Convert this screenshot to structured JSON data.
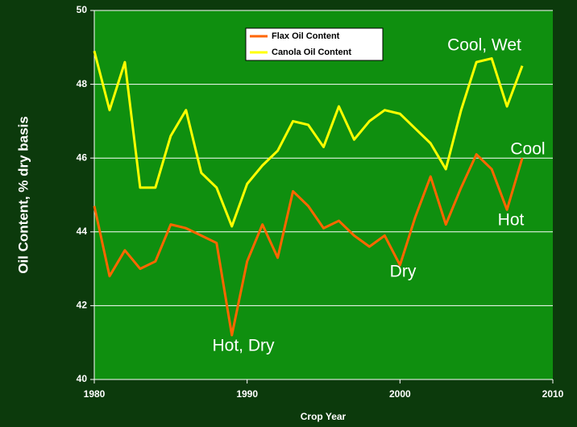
{
  "chart_data": {
    "type": "line",
    "x": [
      1980,
      1981,
      1982,
      1983,
      1984,
      1985,
      1986,
      1987,
      1988,
      1989,
      1990,
      1991,
      1992,
      1993,
      1994,
      1995,
      1996,
      1997,
      1998,
      1999,
      2000,
      2001,
      2002,
      2003,
      2004,
      2005,
      2006,
      2007,
      2008
    ],
    "series": [
      {
        "name": "Flax Oil Content",
        "color": "#ff6600",
        "values": [
          44.7,
          42.8,
          43.5,
          43.0,
          43.2,
          44.2,
          44.1,
          43.9,
          43.7,
          41.2,
          43.2,
          44.2,
          43.3,
          45.1,
          44.7,
          44.1,
          44.3,
          43.9,
          43.6,
          43.9,
          43.1,
          44.4,
          45.5,
          44.2,
          45.2,
          46.1,
          45.7,
          44.6,
          46.0
        ]
      },
      {
        "name": "Canola Oil Content",
        "color": "#ffff00",
        "values": [
          48.9,
          47.3,
          48.6,
          45.2,
          45.2,
          46.6,
          47.3,
          45.6,
          45.2,
          44.15,
          45.3,
          45.8,
          46.2,
          47.0,
          46.9,
          46.3,
          47.4,
          46.5,
          47.0,
          47.3,
          47.2,
          46.8,
          46.4,
          45.7,
          47.3,
          48.6,
          48.7,
          47.4,
          48.5
        ]
      }
    ],
    "xlabel": "Crop Year",
    "ylabel": "Oil Content, % dry basis",
    "xlim": [
      1980,
      2010
    ],
    "xticks": [
      1980,
      1990,
      2000,
      2010
    ],
    "ylim": [
      40,
      50
    ],
    "yticks": [
      40,
      42,
      44,
      46,
      48,
      50
    ],
    "grid": true,
    "annotations": [
      "Hot, Dry",
      "Dry",
      "Cool, Wet",
      "Cool",
      "Hot"
    ]
  }
}
